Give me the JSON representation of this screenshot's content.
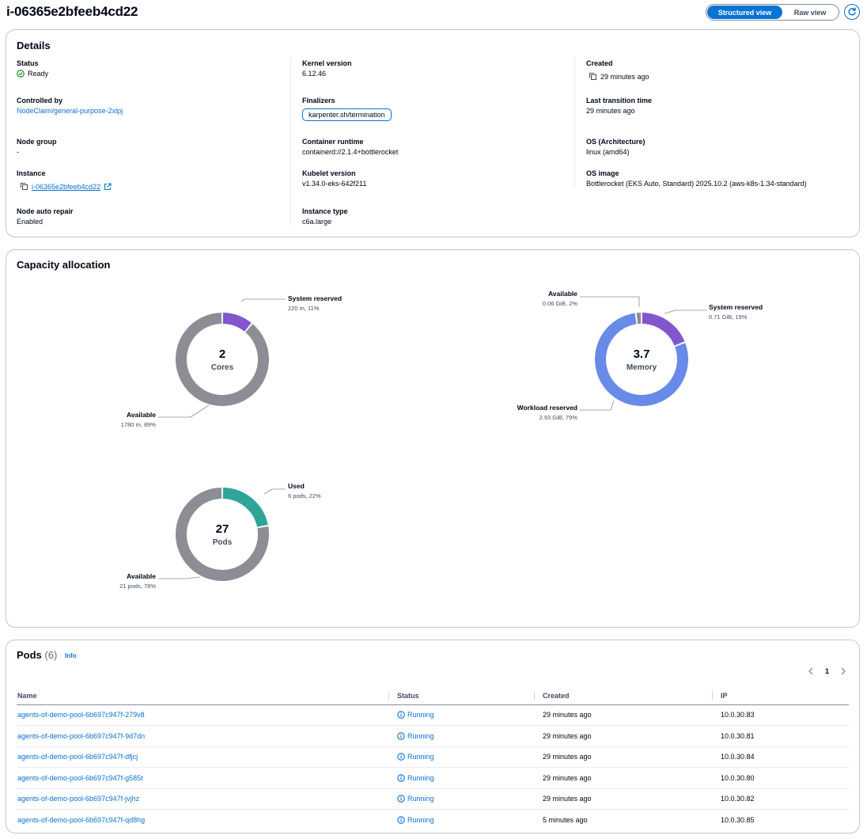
{
  "header": {
    "title": "i-06365e2bfeeb4cd22",
    "structured_view_label": "Structured view",
    "raw_view_label": "Raw view"
  },
  "details": {
    "title": "Details",
    "status": {
      "label": "Status",
      "value": "Ready"
    },
    "kernel_version": {
      "label": "Kernel version",
      "value": "6.12.46"
    },
    "created": {
      "label": "Created",
      "value": "29 minutes ago"
    },
    "controlled_by": {
      "label": "Controlled by",
      "value": "NodeClaim/general-purpose-2xlpj"
    },
    "finalizers": {
      "label": "Finalizers",
      "value": "karpenter.sh/termination"
    },
    "last_transition_time": {
      "label": "Last transition time",
      "value": "29 minutes ago"
    },
    "node_group": {
      "label": "Node group",
      "value": "-"
    },
    "container_runtime": {
      "label": "Container runtime",
      "value": "containerd://2.1.4+bottlerocket"
    },
    "os_architecture": {
      "label": "OS (Architecture)",
      "value": "linux (amd64)"
    },
    "instance": {
      "label": "Instance",
      "value": "i-06365e2bfeeb4cd22"
    },
    "kubelet_version": {
      "label": "Kubelet version",
      "value": "v1.34.0-eks-642f211"
    },
    "os_image": {
      "label": "OS image",
      "value": "Bottlerocket (EKS Auto, Standard) 2025.10.2 (aws-k8s-1.34-standard)"
    },
    "node_auto_repair": {
      "label": "Node auto repair",
      "value": "Enabled"
    },
    "instance_type": {
      "label": "Instance type",
      "value": "c6a.large"
    }
  },
  "capacity": {
    "title": "Capacity allocation",
    "chart_data": [
      {
        "type": "pie",
        "center_value": "2",
        "center_label": "Cores",
        "slices": [
          {
            "name": "System reserved",
            "value": 11,
            "detail": "220 m, 11%",
            "color": "#8456ce"
          },
          {
            "name": "Available",
            "value": 89,
            "detail": "1780 m, 89%",
            "color": "#8d8d96"
          }
        ]
      },
      {
        "type": "pie",
        "center_value": "3.7",
        "center_label": "Memory",
        "slices": [
          {
            "name": "System reserved",
            "value": 19,
            "detail": "0.71 GiB, 19%",
            "color": "#8456ce"
          },
          {
            "name": "Workload reserved",
            "value": 79,
            "detail": "2.93 GiB, 79%",
            "color": "#688ae8"
          },
          {
            "name": "Available",
            "value": 2,
            "detail": "0.06 GiB, 2%",
            "color": "#8d8d96"
          }
        ]
      },
      {
        "type": "pie",
        "center_value": "27",
        "center_label": "Pods",
        "slices": [
          {
            "name": "Used",
            "value": 22,
            "detail": "6 pods, 22%",
            "color": "#2ea597"
          },
          {
            "name": "Available",
            "value": 78,
            "detail": "21 pods, 78%",
            "color": "#8d8d96"
          }
        ]
      }
    ]
  },
  "pods": {
    "title": "Pods",
    "count": "(6)",
    "info_label": "Info",
    "page": "1",
    "columns": [
      "Name",
      "Status",
      "Created",
      "IP"
    ],
    "rows": [
      {
        "name": "agents-of-demo-pool-6b697c947f-279v8",
        "status": "Running",
        "created": "29 minutes ago",
        "ip": "10.0.30.83"
      },
      {
        "name": "agents-of-demo-pool-6b697c947f-9d7dn",
        "status": "Running",
        "created": "29 minutes ago",
        "ip": "10.0.30.81"
      },
      {
        "name": "agents-of-demo-pool-6b697c947f-dfjcj",
        "status": "Running",
        "created": "29 minutes ago",
        "ip": "10.0.30.84"
      },
      {
        "name": "agents-of-demo-pool-6b697c947f-g585t",
        "status": "Running",
        "created": "29 minutes ago",
        "ip": "10.0.30.80"
      },
      {
        "name": "agents-of-demo-pool-6b697c947f-jvjhz",
        "status": "Running",
        "created": "29 minutes ago",
        "ip": "10.0.30.82"
      },
      {
        "name": "agents-of-demo-pool-6b697c947f-qd8hg",
        "status": "Running",
        "created": "5 minutes ago",
        "ip": "10.0.30.85"
      }
    ]
  }
}
